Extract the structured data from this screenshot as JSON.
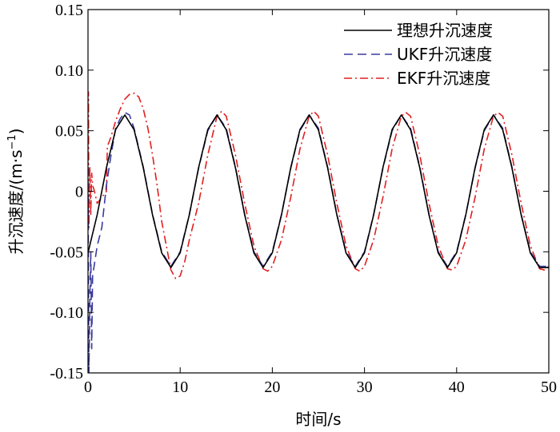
{
  "chart_data": {
    "type": "line",
    "xlabel": "时间/s",
    "ylabel": "升沉速度/(m·s",
    "ylabel_sup": "−1",
    "ylabel_close": ")",
    "xlim": [
      0,
      50
    ],
    "ylim": [
      -0.15,
      0.15
    ],
    "x_ticks": [
      0,
      10,
      20,
      30,
      40,
      50
    ],
    "x_tick_labels": [
      "0",
      "10",
      "20",
      "30",
      "40",
      "50"
    ],
    "y_ticks": [
      0.15,
      0.1,
      0.05,
      0,
      -0.05,
      -0.1,
      -0.15
    ],
    "y_tick_labels": [
      "0.15",
      "0.10",
      "0.05",
      "0",
      "-0.05",
      "-0.10",
      "-0.15"
    ],
    "grid": false,
    "legend_position": "top-right",
    "series": [
      {
        "name": "理想升沉速度",
        "color": "#000000",
        "dash": "solid",
        "x": [
          0,
          1,
          2,
          3,
          4,
          5,
          6,
          7,
          8,
          9,
          10,
          11,
          12,
          13,
          14,
          15,
          16,
          17,
          18,
          19,
          20,
          21,
          22,
          23,
          24,
          25,
          26,
          27,
          28,
          29,
          30,
          31,
          32,
          33,
          34,
          35,
          36,
          37,
          38,
          39,
          40,
          41,
          42,
          43,
          44,
          45,
          46,
          47,
          48,
          49,
          50
        ],
        "y": [
          -0.0508,
          -0.0193,
          0.0195,
          0.051,
          0.063,
          0.0508,
          0.0193,
          -0.0195,
          -0.051,
          -0.063,
          -0.0508,
          -0.0193,
          0.0195,
          0.051,
          0.063,
          0.0508,
          0.0193,
          -0.0195,
          -0.051,
          -0.063,
          -0.0508,
          -0.0193,
          0.0195,
          0.051,
          0.063,
          0.0508,
          0.0193,
          -0.0195,
          -0.051,
          -0.063,
          -0.0508,
          -0.0193,
          0.0195,
          0.051,
          0.063,
          0.0508,
          0.0193,
          -0.0195,
          -0.051,
          -0.063,
          -0.0508,
          -0.0193,
          0.0195,
          0.051,
          0.063,
          0.0508,
          0.0193,
          -0.0195,
          -0.051,
          -0.063,
          -0.063
        ]
      },
      {
        "name": "UKF升沉速度",
        "color": "#3a3aa0",
        "dash": "long-dash",
        "x": [
          0,
          0.1,
          0.2,
          0.3,
          0.4,
          0.5,
          0.7,
          1.0,
          1.5,
          2,
          2.5,
          3,
          3.5,
          4,
          4.5,
          5,
          6,
          7,
          8,
          9,
          10,
          11,
          12,
          13,
          14,
          15,
          16,
          17,
          18,
          19,
          20,
          21,
          22,
          23,
          24,
          25,
          26,
          27,
          28,
          29,
          30,
          31,
          32,
          33,
          34,
          35,
          36,
          37,
          38,
          39,
          40,
          41,
          42,
          43,
          44,
          45,
          46,
          47,
          48,
          49,
          50
        ],
        "y": [
          0.02,
          -0.15,
          -0.09,
          -0.05,
          -0.13,
          -0.07,
          -0.06,
          -0.045,
          -0.03,
          0.005,
          0.03,
          0.052,
          0.06,
          0.065,
          0.063,
          0.052,
          0.02,
          -0.019,
          -0.05,
          -0.062,
          -0.05,
          -0.019,
          0.019,
          0.05,
          0.063,
          0.052,
          0.02,
          -0.019,
          -0.05,
          -0.062,
          -0.05,
          -0.019,
          0.019,
          0.05,
          0.063,
          0.052,
          0.02,
          -0.019,
          -0.05,
          -0.062,
          -0.05,
          -0.019,
          0.019,
          0.05,
          0.063,
          0.052,
          0.02,
          -0.019,
          -0.05,
          -0.062,
          -0.05,
          -0.019,
          0.019,
          0.05,
          0.063,
          0.052,
          0.02,
          -0.019,
          -0.05,
          -0.062,
          -0.062
        ]
      },
      {
        "name": "EKF升沉速度",
        "color": "#e02020",
        "dash": "dash-dot",
        "x": [
          0,
          0.05,
          0.1,
          0.2,
          0.3,
          0.4,
          0.5,
          0.7,
          1.0,
          1.5,
          2.0,
          2.1,
          2.5,
          3.0,
          3.5,
          4.0,
          4.5,
          5.0,
          5.5,
          6.0,
          6.5,
          7.0,
          7.5,
          8.0,
          9.0,
          9.5,
          10.0,
          10.5,
          11,
          12,
          13,
          14,
          14.5,
          15,
          16,
          17,
          18,
          19,
          19.5,
          20,
          21,
          22,
          23,
          24,
          24.5,
          25,
          26,
          27,
          28,
          29,
          29.5,
          30,
          31,
          32,
          33,
          34,
          34.5,
          35,
          36,
          37,
          38,
          39,
          39.5,
          40,
          41,
          42,
          43,
          44,
          44.5,
          45,
          46,
          47,
          48,
          49,
          49.5,
          50
        ],
        "y": [
          0.0,
          0.082,
          -0.03,
          0.02,
          -0.02,
          0.015,
          0.005,
          0.0,
          -0.01,
          -0.005,
          0.0,
          0.037,
          0.045,
          0.058,
          0.068,
          0.076,
          0.08,
          0.081,
          0.078,
          0.068,
          0.052,
          0.03,
          0.005,
          -0.025,
          -0.065,
          -0.072,
          -0.07,
          -0.058,
          -0.04,
          -0.01,
          0.03,
          0.062,
          0.066,
          0.062,
          0.03,
          -0.01,
          -0.045,
          -0.064,
          -0.066,
          -0.062,
          -0.04,
          -0.005,
          0.035,
          0.062,
          0.066,
          0.062,
          0.03,
          -0.01,
          -0.045,
          -0.064,
          -0.066,
          -0.062,
          -0.04,
          -0.005,
          0.035,
          0.062,
          0.065,
          0.062,
          0.03,
          -0.01,
          -0.045,
          -0.064,
          -0.065,
          -0.062,
          -0.04,
          -0.005,
          0.035,
          0.062,
          0.065,
          0.062,
          0.03,
          -0.01,
          -0.045,
          -0.064,
          -0.065,
          -0.062
        ]
      }
    ]
  }
}
